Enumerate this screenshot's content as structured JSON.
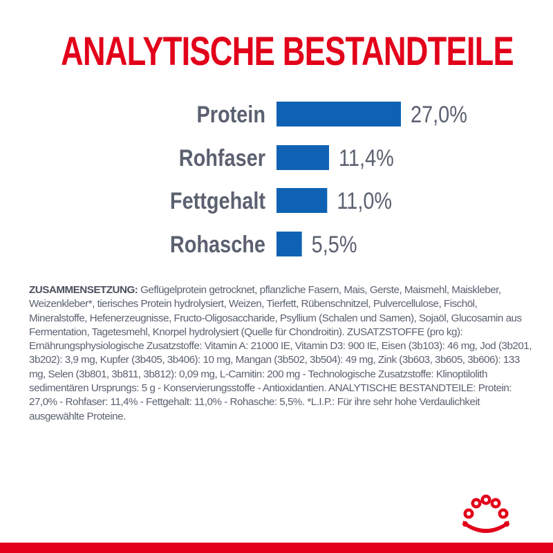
{
  "title": "ANALYTISCHE BESTANDTEILE",
  "chart_data": {
    "type": "bar",
    "orientation": "horizontal",
    "categories": [
      "Protein",
      "Rohfaser",
      "Fettgehalt",
      "Rohasche"
    ],
    "values": [
      27.0,
      11.4,
      11.0,
      5.5
    ],
    "value_labels": [
      "27,0%",
      "11,4%",
      "11,0%",
      "5,5%"
    ],
    "bar_color": "#0f62b3",
    "title": "ANALYTISCHE BESTANDTEILE",
    "xlabel": "",
    "ylabel": "",
    "grid": false
  },
  "composition": {
    "heading": "ZUSAMMENSETZUNG:",
    "text": " Geflügelprotein getrocknet, pflanzliche Fasern, Mais, Gerste, Maismehl, Maiskleber, Weizenkleber*, tierisches Protein hydrolysiert, Weizen, Tierfett, Rübenschnitzel, Pulvercellulose, Fischöl, Mineralstoffe, Hefenerzeugnisse, Fructo-Oligosaccharide, Psyllium (Schalen und Samen), Sojaöl, Glucosamin aus Fermentation, Tagetesmehl, Knorpel hydrolysiert (Quelle für Chondroitin). ZUSATZSTOFFE (pro kg): Ernährungsphysiologische Zusatzstoffe: Vitamin A: 21000 IE, Vitamin D3: 900 IE, Eisen (3b103): 46 mg, Jod (3b201, 3b202): 3,9 mg, Kupfer (3b405, 3b406): 10 mg, Mangan (3b502, 3b504): 49 mg, Zink (3b603, 3b605, 3b606): 133 mg, Selen (3b801, 3b811, 3b812): 0,09 mg, L-Carnitin: 200 mg - Technologische Zusatzstoffe: Klinoptilolith sedimentären Ursprungs: 5 g - Konservierungsstoffe - Antioxidantien. ANALYTISCHE BESTANDTEILE: Protein: 27,0% - Rohfaser: 11,4% - Fettgehalt: 11,0% - Rohasche: 5,5%. *L.I.P.: Für ihre sehr hohe Verdaulichkeit ausgewählte Proteine."
  },
  "brand": {
    "logo_icon": "crown-icon",
    "accent_color": "#e2001a"
  }
}
